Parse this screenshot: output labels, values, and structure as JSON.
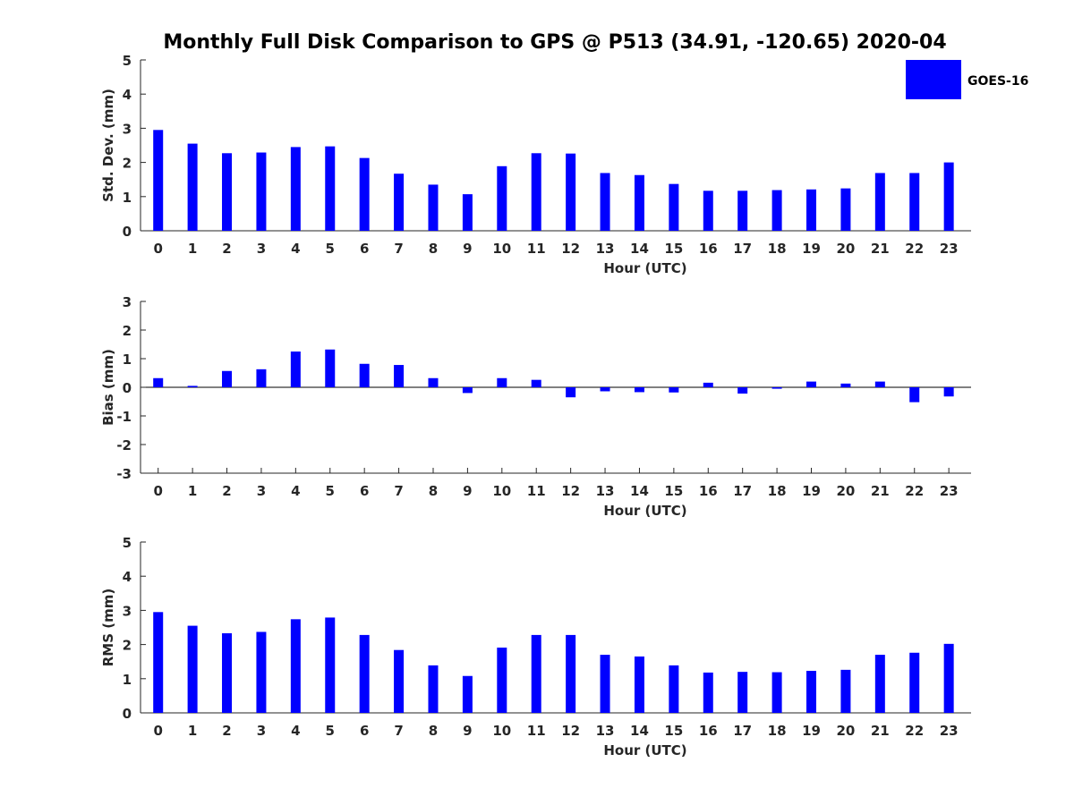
{
  "title": "Monthly Full Disk Comparison to GPS @ P513 (34.91, -120.65) 2020-04",
  "legend": {
    "label": "GOES-16",
    "color": "#0000ff"
  },
  "chart_data": [
    {
      "type": "bar",
      "id": "stddev",
      "xlabel": "Hour (UTC)",
      "ylabel": "Std. Dev. (mm)",
      "ylim": [
        0,
        5
      ],
      "yticks": [
        "0",
        "1",
        "2",
        "3",
        "4",
        "5"
      ],
      "categories": [
        "0",
        "1",
        "2",
        "3",
        "4",
        "5",
        "6",
        "7",
        "8",
        "9",
        "10",
        "11",
        "12",
        "13",
        "14",
        "15",
        "16",
        "17",
        "18",
        "19",
        "20",
        "21",
        "22",
        "23"
      ],
      "series": [
        {
          "name": "GOES-16",
          "values": [
            2.95,
            2.55,
            2.27,
            2.29,
            2.45,
            2.47,
            2.13,
            1.67,
            1.35,
            1.07,
            1.89,
            2.27,
            2.26,
            1.69,
            1.63,
            1.37,
            1.17,
            1.17,
            1.19,
            1.21,
            1.24,
            1.69,
            1.69,
            2.0
          ]
        }
      ]
    },
    {
      "type": "bar",
      "id": "bias",
      "xlabel": "Hour (UTC)",
      "ylabel": "Bias (mm)",
      "ylim": [
        -3,
        3
      ],
      "yticks": [
        "-3",
        "-2",
        "-1",
        "0",
        "1",
        "2",
        "3"
      ],
      "categories": [
        "0",
        "1",
        "2",
        "3",
        "4",
        "5",
        "6",
        "7",
        "8",
        "9",
        "10",
        "11",
        "12",
        "13",
        "14",
        "15",
        "16",
        "17",
        "18",
        "19",
        "20",
        "21",
        "22",
        "23"
      ],
      "series": [
        {
          "name": "GOES-16",
          "values": [
            0.32,
            0.05,
            0.57,
            0.63,
            1.25,
            1.32,
            0.82,
            0.78,
            0.32,
            -0.2,
            0.32,
            0.26,
            -0.35,
            -0.14,
            -0.17,
            -0.18,
            0.16,
            -0.22,
            -0.05,
            0.2,
            0.13,
            0.2,
            -0.52,
            -0.32
          ]
        }
      ]
    },
    {
      "type": "bar",
      "id": "rms",
      "xlabel": "Hour (UTC)",
      "ylabel": "RMS (mm)",
      "ylim": [
        0,
        5
      ],
      "yticks": [
        "0",
        "1",
        "2",
        "3",
        "4",
        "5"
      ],
      "categories": [
        "0",
        "1",
        "2",
        "3",
        "4",
        "5",
        "6",
        "7",
        "8",
        "9",
        "10",
        "11",
        "12",
        "13",
        "14",
        "15",
        "16",
        "17",
        "18",
        "19",
        "20",
        "21",
        "22",
        "23"
      ],
      "series": [
        {
          "name": "GOES-16",
          "values": [
            2.95,
            2.55,
            2.33,
            2.37,
            2.74,
            2.79,
            2.28,
            1.84,
            1.39,
            1.08,
            1.91,
            2.28,
            2.28,
            1.7,
            1.65,
            1.39,
            1.18,
            1.2,
            1.19,
            1.23,
            1.26,
            1.7,
            1.76,
            2.02
          ]
        }
      ]
    }
  ]
}
